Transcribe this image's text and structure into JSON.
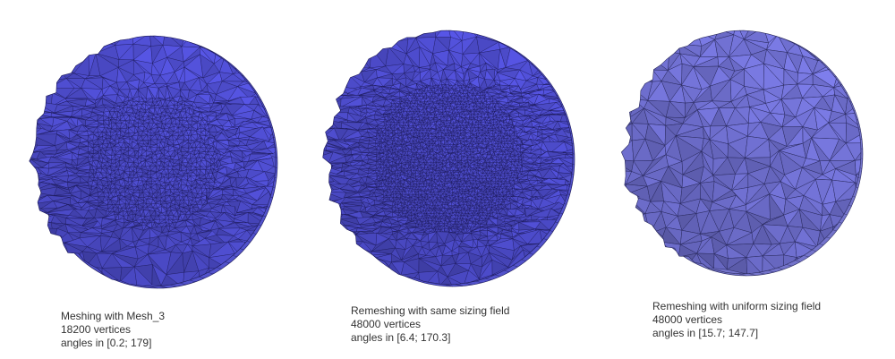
{
  "panels": [
    {
      "caption": {
        "line1": "Meshing with Mesh_3",
        "line2": "18200 vertices",
        "line3": "angles in [0.2; 179]"
      },
      "colors": {
        "base": "#4a49c4",
        "rim": "#5656d6",
        "edge": "#1c1a58"
      },
      "mesh_density": "coarse-edges-fine-center"
    },
    {
      "caption": {
        "line1": "Remeshing with same sizing field",
        "line2": "48000 vertices",
        "line3": "angles in [6.4; 170.3]"
      },
      "colors": {
        "base": "#4a49c4",
        "rim": "#5656d6",
        "edge": "#1c1a58"
      },
      "mesh_density": "coarse-edges-very-fine-center"
    },
    {
      "caption": {
        "line1": "Remeshing with uniform sizing field",
        "line2": "48000 vertices",
        "line3": "angles in [15.7; 147.7]"
      },
      "colors": {
        "base": "#6b6bc8",
        "rim": "#7a7ad6",
        "edge": "#2a2a5e"
      },
      "mesh_density": "uniform"
    }
  ]
}
